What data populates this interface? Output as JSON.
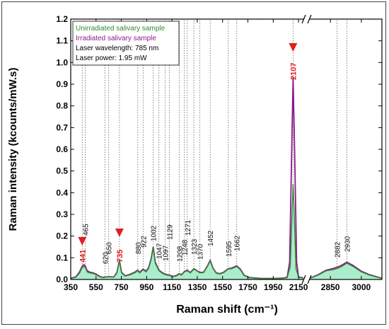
{
  "chart_data": {
    "type": "line",
    "title": "",
    "xlabel": "Raman shift (cm⁻¹)",
    "ylabel": "Raman intensity (kcounts/mW.s)",
    "ylim": [
      0.0,
      1.2
    ],
    "y_ticks": [
      "0.0",
      "0.1",
      "0.2",
      "0.3",
      "0.4",
      "0.5",
      "0.6",
      "0.7",
      "0.8",
      "0.9",
      "1.0",
      "1.1",
      "1.2"
    ],
    "x_segments": [
      {
        "range": [
          350,
          2200
        ],
        "ticks": [
          "350",
          "550",
          "750",
          "950",
          "1150",
          "1350",
          "1550",
          "1750",
          "1950",
          "2150"
        ]
      },
      {
        "range": [
          2750,
          3100
        ],
        "ticks": [
          "2850",
          "3000"
        ]
      }
    ],
    "axis_break": "//",
    "legend": {
      "placement": "top-left",
      "entries": [
        {
          "label": "Unirradiated salivary sample",
          "color": "#2e8b2e"
        },
        {
          "label": "Irradiated salivary sample",
          "color": "#8b1a8b"
        }
      ],
      "info": [
        "Laser wavelength: 785 nm",
        "Laser power: 1.95 mW"
      ]
    },
    "peak_labels": [
      {
        "x": 441,
        "label": "441",
        "highlight": true
      },
      {
        "x": 465,
        "label": "465",
        "highlight": false
      },
      {
        "x": 620,
        "label": "620",
        "highlight": false
      },
      {
        "x": 650,
        "label": "650",
        "highlight": false
      },
      {
        "x": 735,
        "label": "735",
        "highlight": true
      },
      {
        "x": 880,
        "label": "880",
        "highlight": false
      },
      {
        "x": 922,
        "label": "922",
        "highlight": false
      },
      {
        "x": 1002,
        "label": "1002",
        "highlight": false
      },
      {
        "x": 1047,
        "label": "1047",
        "highlight": false
      },
      {
        "x": 1097,
        "label": "1097",
        "highlight": false
      },
      {
        "x": 1129,
        "label": "1129",
        "highlight": false
      },
      {
        "x": 1208,
        "label": "1208",
        "highlight": false
      },
      {
        "x": 1248,
        "label": "1248",
        "highlight": false
      },
      {
        "x": 1271,
        "label": "1271",
        "highlight": false
      },
      {
        "x": 1323,
        "label": "1323",
        "highlight": false
      },
      {
        "x": 1370,
        "label": "1370",
        "highlight": false
      },
      {
        "x": 1452,
        "label": "1452",
        "highlight": false
      },
      {
        "x": 1595,
        "label": "1595",
        "highlight": false
      },
      {
        "x": 1662,
        "label": "1662",
        "highlight": false
      },
      {
        "x": 2107,
        "label": "2107",
        "highlight": true
      },
      {
        "x": 2882,
        "label": "2882",
        "highlight": false
      },
      {
        "x": 2930,
        "label": "2930",
        "highlight": false
      }
    ],
    "series": [
      {
        "name": "Unirradiated salivary sample",
        "color": "#2e8b2e",
        "fill": "#aaeccc",
        "points": [
          [
            350,
            0.005
          ],
          [
            390,
            0.01
          ],
          [
            420,
            0.03
          ],
          [
            441,
            0.055
          ],
          [
            455,
            0.06
          ],
          [
            465,
            0.055
          ],
          [
            480,
            0.035
          ],
          [
            500,
            0.03
          ],
          [
            525,
            0.028
          ],
          [
            550,
            0.022
          ],
          [
            580,
            0.012
          ],
          [
            610,
            0.008
          ],
          [
            620,
            0.01
          ],
          [
            650,
            0.012
          ],
          [
            690,
            0.01
          ],
          [
            715,
            0.03
          ],
          [
            735,
            0.085
          ],
          [
            752,
            0.03
          ],
          [
            780,
            0.015
          ],
          [
            820,
            0.022
          ],
          [
            860,
            0.032
          ],
          [
            880,
            0.04
          ],
          [
            895,
            0.03
          ],
          [
            922,
            0.045
          ],
          [
            945,
            0.035
          ],
          [
            965,
            0.05
          ],
          [
            985,
            0.09
          ],
          [
            1002,
            0.145
          ],
          [
            1018,
            0.075
          ],
          [
            1047,
            0.04
          ],
          [
            1070,
            0.03
          ],
          [
            1097,
            0.022
          ],
          [
            1129,
            0.018
          ],
          [
            1160,
            0.012
          ],
          [
            1190,
            0.018
          ],
          [
            1208,
            0.025
          ],
          [
            1225,
            0.02
          ],
          [
            1248,
            0.035
          ],
          [
            1271,
            0.04
          ],
          [
            1295,
            0.03
          ],
          [
            1323,
            0.048
          ],
          [
            1345,
            0.04
          ],
          [
            1370,
            0.03
          ],
          [
            1400,
            0.032
          ],
          [
            1430,
            0.06
          ],
          [
            1452,
            0.085
          ],
          [
            1475,
            0.05
          ],
          [
            1500,
            0.028
          ],
          [
            1530,
            0.025
          ],
          [
            1560,
            0.032
          ],
          [
            1595,
            0.048
          ],
          [
            1625,
            0.05
          ],
          [
            1662,
            0.06
          ],
          [
            1690,
            0.045
          ],
          [
            1720,
            0.018
          ],
          [
            1760,
            0.008
          ],
          [
            1850,
            0.004
          ],
          [
            1950,
            0.004
          ],
          [
            2020,
            0.005
          ],
          [
            2060,
            0.008
          ],
          [
            2085,
            0.06
          ],
          [
            2100,
            0.32
          ],
          [
            2107,
            0.44
          ],
          [
            2114,
            0.34
          ],
          [
            2130,
            0.05
          ],
          [
            2150,
            0.01
          ],
          [
            2200,
            0.005
          ],
          [
            2750,
            0.005
          ],
          [
            2790,
            0.02
          ],
          [
            2830,
            0.04
          ],
          [
            2860,
            0.045
          ],
          [
            2882,
            0.05
          ],
          [
            2905,
            0.06
          ],
          [
            2930,
            0.075
          ],
          [
            2960,
            0.06
          ],
          [
            3000,
            0.035
          ],
          [
            3040,
            0.02
          ],
          [
            3080,
            0.01
          ],
          [
            3100,
            0.005
          ]
        ]
      },
      {
        "name": "Irradiated salivary sample",
        "color": "#8b1a8b",
        "points": [
          [
            350,
            0.006
          ],
          [
            390,
            0.012
          ],
          [
            420,
            0.035
          ],
          [
            441,
            0.062
          ],
          [
            455,
            0.068
          ],
          [
            465,
            0.062
          ],
          [
            480,
            0.04
          ],
          [
            500,
            0.034
          ],
          [
            525,
            0.031
          ],
          [
            550,
            0.025
          ],
          [
            580,
            0.014
          ],
          [
            610,
            0.009
          ],
          [
            620,
            0.011
          ],
          [
            650,
            0.013
          ],
          [
            690,
            0.011
          ],
          [
            715,
            0.033
          ],
          [
            735,
            0.088
          ],
          [
            752,
            0.033
          ],
          [
            780,
            0.017
          ],
          [
            820,
            0.024
          ],
          [
            860,
            0.035
          ],
          [
            880,
            0.043
          ],
          [
            895,
            0.033
          ],
          [
            922,
            0.048
          ],
          [
            945,
            0.038
          ],
          [
            965,
            0.054
          ],
          [
            985,
            0.095
          ],
          [
            1002,
            0.15
          ],
          [
            1018,
            0.08
          ],
          [
            1047,
            0.043
          ],
          [
            1070,
            0.033
          ],
          [
            1097,
            0.024
          ],
          [
            1129,
            0.02
          ],
          [
            1160,
            0.014
          ],
          [
            1190,
            0.02
          ],
          [
            1208,
            0.027
          ],
          [
            1225,
            0.022
          ],
          [
            1248,
            0.037
          ],
          [
            1271,
            0.043
          ],
          [
            1295,
            0.032
          ],
          [
            1323,
            0.05
          ],
          [
            1345,
            0.042
          ],
          [
            1370,
            0.032
          ],
          [
            1400,
            0.034
          ],
          [
            1430,
            0.062
          ],
          [
            1452,
            0.088
          ],
          [
            1475,
            0.052
          ],
          [
            1500,
            0.03
          ],
          [
            1530,
            0.027
          ],
          [
            1560,
            0.034
          ],
          [
            1595,
            0.05
          ],
          [
            1625,
            0.053
          ],
          [
            1662,
            0.063
          ],
          [
            1690,
            0.048
          ],
          [
            1720,
            0.02
          ],
          [
            1760,
            0.009
          ],
          [
            1850,
            0.005
          ],
          [
            1950,
            0.005
          ],
          [
            2020,
            0.006
          ],
          [
            2060,
            0.01
          ],
          [
            2080,
            0.08
          ],
          [
            2095,
            0.55
          ],
          [
            2107,
            0.93
          ],
          [
            2119,
            0.6
          ],
          [
            2135,
            0.08
          ],
          [
            2150,
            0.012
          ],
          [
            2200,
            0.006
          ],
          [
            2750,
            0.006
          ],
          [
            2790,
            0.022
          ],
          [
            2830,
            0.043
          ],
          [
            2860,
            0.05
          ],
          [
            2882,
            0.056
          ],
          [
            2905,
            0.066
          ],
          [
            2930,
            0.08
          ],
          [
            2960,
            0.065
          ],
          [
            3000,
            0.038
          ],
          [
            3040,
            0.022
          ],
          [
            3080,
            0.011
          ],
          [
            3100,
            0.006
          ]
        ]
      }
    ]
  }
}
